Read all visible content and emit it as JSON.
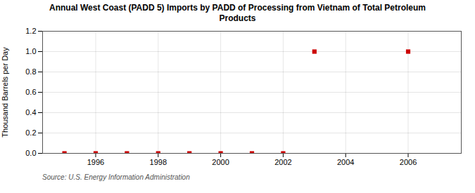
{
  "chart_data": {
    "type": "scatter",
    "title": "Annual West Coast (PADD 5) Imports by PADD of Processing from Vietnam of Total Petroleum\nProducts",
    "ylabel": "Thousand Barrels per Day",
    "annotations": [
      "Source: U.S. Energy Information Administration"
    ],
    "x": [
      1995,
      1996,
      1997,
      1998,
      1999,
      2000,
      2001,
      2002,
      2003,
      2006
    ],
    "values": [
      0.0,
      0.0,
      0.0,
      0.0,
      0.0,
      0.0,
      0.0,
      0.0,
      1.0,
      1.0
    ],
    "color": "#cc0000",
    "marker": "square",
    "xlim": [
      1994.3,
      2007.7
    ],
    "ylim": [
      0.0,
      1.2
    ],
    "xticks": [
      1996,
      1998,
      2000,
      2002,
      2004,
      2006
    ],
    "yticks": [
      {
        "value": 0.0,
        "label": "0.0"
      },
      0.2,
      0.4,
      0.6,
      0.8,
      {
        "value": 1.0,
        "label": "1.0"
      },
      1.2
    ],
    "grid": true
  }
}
